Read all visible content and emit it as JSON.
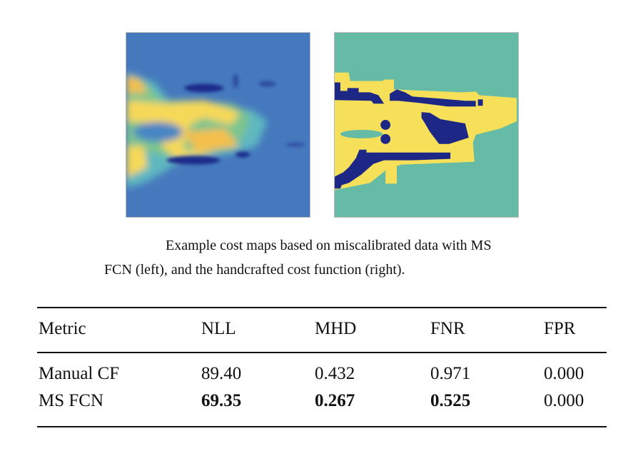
{
  "figure": {
    "left_label": "MS FCN cost map",
    "right_label": "handcrafted cost map",
    "caption_line1": "Example cost maps based on miscalibrated data with MS",
    "caption_line2": "FCN (left), and the handcrafted cost function (right).",
    "colors": {
      "blue": "#4579be",
      "yellow": "#f6e05a",
      "teal": "#66bba6",
      "navy": "#1c2786",
      "orange": "#f2b84a"
    }
  },
  "table": {
    "headers": [
      "Metric",
      "NLL",
      "MHD",
      "FNR",
      "FPR"
    ],
    "rows": [
      {
        "cells": [
          "Manual CF",
          "89.40",
          "0.432",
          "0.971",
          "0.000"
        ],
        "bold": [
          false,
          false,
          false,
          false,
          false
        ]
      },
      {
        "cells": [
          "MS FCN",
          "69.35",
          "0.267",
          "0.525",
          "0.000"
        ],
        "bold": [
          false,
          true,
          true,
          true,
          false
        ]
      }
    ]
  }
}
